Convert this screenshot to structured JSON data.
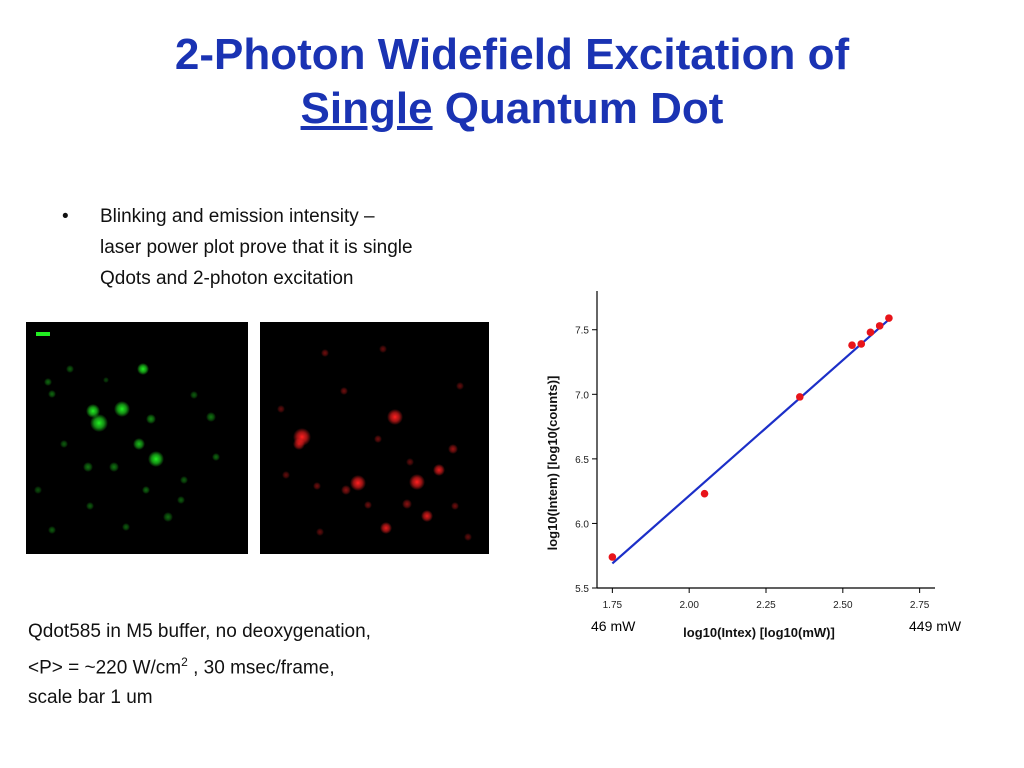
{
  "title": {
    "line1": "2-Photon Widefield Excitation of",
    "line2_u": "Single",
    "line2_rest": " Quantum Dot"
  },
  "bullet": {
    "symbol": "•",
    "lines": [
      "Blinking and emission intensity –",
      "laser power plot prove that it is single",
      "Qdots and 2-photon excitation"
    ]
  },
  "caption": {
    "line1": "Qdot585 in M5 buffer, no deoxygenation,",
    "line2a": "<P> = ~220 W/cm",
    "line2sup": "2",
    "line2b": " , 30 msec/frame,",
    "line3": "scale bar 1 um"
  },
  "power_labels": {
    "low": "46 mW",
    "high": "449 mW"
  },
  "colors": {
    "title": "#1a33b3",
    "green_channel": "#22ee22",
    "red_channel": "#ff2020",
    "fit_line": "#1c2fc8",
    "points": "#e8141a"
  },
  "chart_data": {
    "type": "scatter",
    "xlabel": "log10(Intex) [log10(mW)]",
    "ylabel": "log10(Intem) [log10(counts)]",
    "xlim": [
      1.7,
      2.8
    ],
    "ylim": [
      5.5,
      7.8
    ],
    "x_ticks": [
      "1.75",
      "2.00",
      "2.25",
      "2.50",
      "2.75"
    ],
    "y_ticks": [
      "5.5",
      "6.0",
      "6.5",
      "7.0",
      "7.5"
    ],
    "series": [
      {
        "values": [
          [
            1.75,
            5.74
          ],
          [
            2.05,
            6.23
          ],
          [
            2.36,
            6.98
          ],
          [
            2.53,
            7.38
          ],
          [
            2.56,
            7.39
          ],
          [
            2.59,
            7.48
          ],
          [
            2.62,
            7.53
          ],
          [
            2.65,
            7.59
          ]
        ]
      }
    ],
    "fit": {
      "x": [
        1.75,
        2.66
      ],
      "y": [
        5.69,
        7.6
      ]
    }
  }
}
